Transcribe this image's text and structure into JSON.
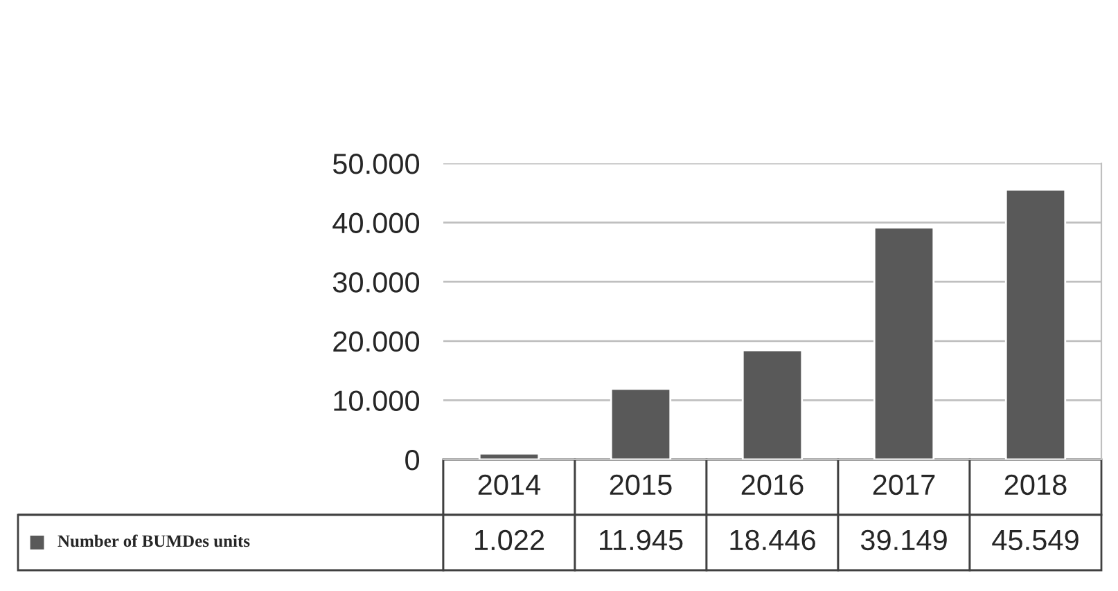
{
  "chart_data": {
    "type": "bar",
    "categories": [
      "2014",
      "2015",
      "2016",
      "2017",
      "2018"
    ],
    "series": [
      {
        "name": "Number of BUMDes units",
        "color": "#595959",
        "values": [
          1022,
          11945,
          18446,
          39149,
          45549
        ],
        "value_labels": [
          "1.022",
          "11.945",
          "18.446",
          "39.149",
          "45.549"
        ]
      }
    ],
    "ylim": [
      0,
      50000
    ],
    "yticks": [
      0,
      {
        "value": 10000,
        "label": "10.000"
      },
      {
        "value": 20000,
        "label": "20.000"
      },
      {
        "value": 30000,
        "label": "30.000"
      },
      {
        "value": 40000,
        "label": "40.000"
      },
      {
        "value": 50000,
        "label": "50.000"
      }
    ],
    "grid": "y",
    "legend": "bottom left",
    "tick_labels": "y"
  }
}
